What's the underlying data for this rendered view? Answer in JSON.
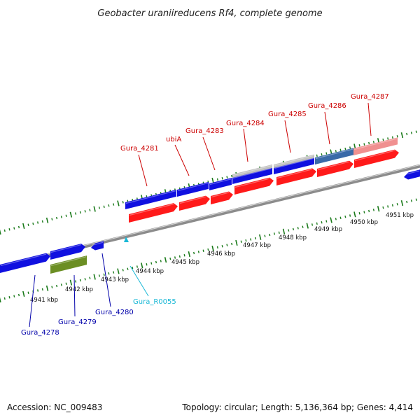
{
  "map": {
    "title": "Geobacter uraniireducens Rf4, complete genome",
    "accession": "Accession: NC_009483",
    "topology": "Topology: circular; Length: 5,136,364 bp; Genes: 4,414"
  },
  "colors": {
    "background": "#ffffff",
    "backbone": "#7a7a7a",
    "tick": "#1a7a1a",
    "cds": "#ff1a1a",
    "gene": "#1010e0",
    "gene_partial": "#3a6aa8",
    "gene_pseudo": "#c0c0c0",
    "cds_pseudo": "#f09090",
    "rna_gene": "#6b8e23",
    "label_upper": "#cc0000",
    "label_lower": "#0000aa",
    "label_rna": "#19b8d6"
  },
  "tick_labels": [
    "4941 kbp",
    "4942 kbp",
    "4943 kbp",
    "4944 kbp",
    "4945 kbp",
    "4946 kbp",
    "4947 kbp",
    "4948 kbp",
    "4949 kbp",
    "4950 kbp",
    "4951 kbp"
  ],
  "upper_labels": [
    {
      "id": "Gura_4281",
      "color": "label_upper"
    },
    {
      "id": "ubiA",
      "color": "label_upper"
    },
    {
      "id": "Gura_4283",
      "color": "label_upper"
    },
    {
      "id": "Gura_4284",
      "color": "label_upper"
    },
    {
      "id": "Gura_4285",
      "color": "label_upper"
    },
    {
      "id": "Gura_4286",
      "color": "label_upper"
    },
    {
      "id": "Gura_4287",
      "color": "label_upper"
    }
  ],
  "lower_labels": [
    {
      "id": "Gura_4278",
      "color": "label_lower"
    },
    {
      "id": "Gura_4279",
      "color": "label_lower"
    },
    {
      "id": "Gura_4280",
      "color": "label_lower"
    },
    {
      "id": "Gura_R0055",
      "color": "label_rna"
    }
  ]
}
